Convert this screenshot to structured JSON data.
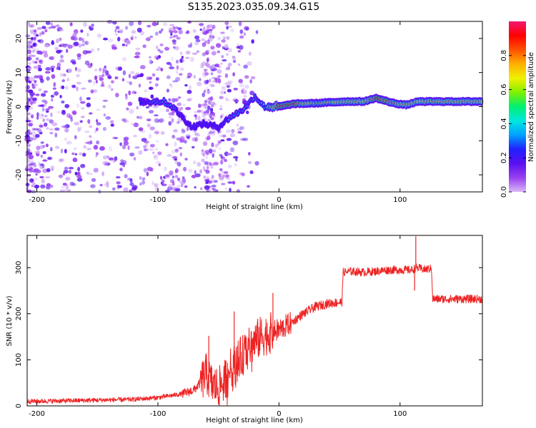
{
  "figure": {
    "title": "S135.2023.035.09.34.G15"
  },
  "chart_data": [
    {
      "type": "heatmap",
      "xlabel": "Height of straight line (km)",
      "ylabel": "Frequency (Hz)",
      "xlim": [
        -208,
        168
      ],
      "ylim": [
        -25,
        25
      ],
      "xticks": [
        -200,
        -100,
        0,
        100
      ],
      "yticks": [
        -20,
        -10,
        0,
        10,
        20
      ],
      "colorbar": {
        "label": "Normalized spectral amplitude",
        "range": [
          0.0,
          1.0
        ],
        "ticks": [
          0.0,
          0.2,
          0.4,
          0.6,
          0.8
        ],
        "colormap": [
          "#d8b8f8",
          "#9a40f0",
          "#5a10f0",
          "#2020ff",
          "#00a0ff",
          "#00e8e0",
          "#00f070",
          "#80f000",
          "#f0f000",
          "#ffb000",
          "#ff5000",
          "#ff0000",
          "#f01870"
        ]
      },
      "ridge": [
        {
          "x": -115,
          "f": 1.5,
          "amp": 0.25
        },
        {
          "x": -105,
          "f": 1.5,
          "amp": 0.3
        },
        {
          "x": -95,
          "f": 1.5,
          "amp": 0.3
        },
        {
          "x": -88,
          "f": 0.0,
          "amp": 0.3
        },
        {
          "x": -80,
          "f": -3.0,
          "amp": 0.28
        },
        {
          "x": -72,
          "f": -6.0,
          "amp": 0.25
        },
        {
          "x": -62,
          "f": -5.0,
          "amp": 0.25
        },
        {
          "x": -50,
          "f": -6.0,
          "amp": 0.25
        },
        {
          "x": -40,
          "f": -3.0,
          "amp": 0.3
        },
        {
          "x": -30,
          "f": -1.0,
          "amp": 0.3
        },
        {
          "x": -20,
          "f": 3.0,
          "amp": 0.3
        },
        {
          "x": -12,
          "f": 0.0,
          "amp": 0.45
        },
        {
          "x": 0,
          "f": 0.0,
          "amp": 0.9
        },
        {
          "x": 12,
          "f": 0.8,
          "amp": 0.9
        },
        {
          "x": 30,
          "f": 1.0,
          "amp": 0.6
        },
        {
          "x": 55,
          "f": 1.5,
          "amp": 0.75
        },
        {
          "x": 70,
          "f": 1.5,
          "amp": 0.7
        },
        {
          "x": 80,
          "f": 2.5,
          "amp": 0.9
        },
        {
          "x": 95,
          "f": 1.0,
          "amp": 0.8
        },
        {
          "x": 105,
          "f": 0.5,
          "amp": 0.75
        },
        {
          "x": 115,
          "f": 1.5,
          "amp": 0.7
        },
        {
          "x": 140,
          "f": 1.5,
          "amp": 0.75
        },
        {
          "x": 168,
          "f": 1.5,
          "amp": 0.75
        }
      ]
    },
    {
      "type": "line",
      "xlabel": "Height of straight line (km)",
      "ylabel": "SNR (10 * v/v)",
      "xlim": [
        -208,
        168
      ],
      "ylim": [
        0,
        370
      ],
      "xticks": [
        -200,
        -100,
        0,
        100
      ],
      "yticks": [
        0,
        100,
        200,
        300
      ],
      "series": [
        {
          "color": "#ee2222",
          "x": [
            -208,
            -200,
            -180,
            -160,
            -140,
            -120,
            -110,
            -100,
            -90,
            -80,
            -75,
            -70,
            -65,
            -60,
            -55,
            -50,
            -45,
            -40,
            -35,
            -30,
            -25,
            -20,
            -15,
            -10,
            -5,
            0,
            10,
            20,
            30,
            40,
            50,
            52,
            53,
            60,
            70,
            80,
            90,
            100,
            110,
            113,
            120,
            126,
            127,
            140,
            155,
            168
          ],
          "y": [
            10,
            10,
            11,
            12,
            13,
            14,
            16,
            18,
            22,
            26,
            30,
            35,
            50,
            70,
            45,
            40,
            55,
            80,
            95,
            110,
            125,
            140,
            150,
            155,
            160,
            165,
            180,
            200,
            215,
            222,
            225,
            225,
            290,
            292,
            290,
            292,
            295,
            295,
            295,
            300,
            296,
            298,
            232,
            232,
            232,
            232
          ],
          "spikes": [
            {
              "x": -58,
              "y": 152
            },
            {
              "x": -37,
              "y": 205
            },
            {
              "x": -5,
              "y": 245
            },
            {
              "x": 113,
              "y": 368
            },
            {
              "x": 112,
              "y": 250
            }
          ]
        }
      ]
    }
  ]
}
